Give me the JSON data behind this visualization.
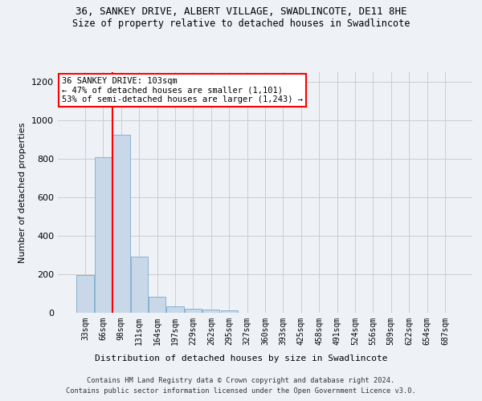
{
  "title": "36, SANKEY DRIVE, ALBERT VILLAGE, SWADLINCOTE, DE11 8HE",
  "subtitle": "Size of property relative to detached houses in Swadlincote",
  "xlabel": "Distribution of detached houses by size in Swadlincote",
  "ylabel": "Number of detached properties",
  "bin_labels": [
    "33sqm",
    "66sqm",
    "98sqm",
    "131sqm",
    "164sqm",
    "197sqm",
    "229sqm",
    "262sqm",
    "295sqm",
    "327sqm",
    "360sqm",
    "393sqm",
    "425sqm",
    "458sqm",
    "491sqm",
    "524sqm",
    "556sqm",
    "589sqm",
    "622sqm",
    "654sqm",
    "687sqm"
  ],
  "bar_values": [
    195,
    810,
    925,
    290,
    85,
    35,
    20,
    18,
    12,
    0,
    0,
    0,
    0,
    0,
    0,
    0,
    0,
    0,
    0,
    0,
    0
  ],
  "bar_color": "#c8d8e8",
  "bar_edge_color": "#7aaacc",
  "ylim": [
    0,
    1250
  ],
  "yticks": [
    0,
    200,
    400,
    600,
    800,
    1000,
    1200
  ],
  "annotation_title": "36 SANKEY DRIVE: 103sqm",
  "annotation_line1": "← 47% of detached houses are smaller (1,101)",
  "annotation_line2": "53% of semi-detached houses are larger (1,243) →",
  "red_line_x": 1.5,
  "footer_line1": "Contains HM Land Registry data © Crown copyright and database right 2024.",
  "footer_line2": "Contains public sector information licensed under the Open Government Licence v3.0.",
  "background_color": "#eef2f7",
  "plot_background_color": "#eef2f7",
  "grid_color": "#cccccc"
}
